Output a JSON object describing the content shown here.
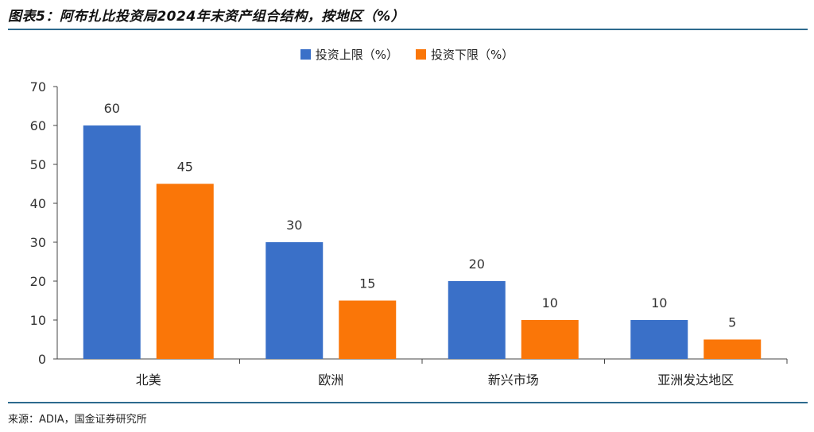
{
  "header": {
    "title": "图表5：阿布扎比投资局2024年末资产组合结构，按地区（%）"
  },
  "footer": {
    "source": "来源：ADIA，国金证券研究所"
  },
  "colors": {
    "upper": "#3a70c8",
    "lower": "#fa7608",
    "rule": "#2d6a8e"
  },
  "chart_data": {
    "type": "bar",
    "title": "阿布扎比投资局2024年末资产组合结构，按地区（%）",
    "categories": [
      "北美",
      "欧洲",
      "新兴市场",
      "亚洲发达地区"
    ],
    "series": [
      {
        "name": "投资上限（%）",
        "values": [
          60,
          30,
          20,
          10
        ]
      },
      {
        "name": "投资下限（%）",
        "values": [
          45,
          15,
          10,
          5
        ]
      }
    ],
    "xlabel": "",
    "ylabel": "",
    "ylim": [
      0,
      70
    ],
    "yticks": [
      0,
      10,
      20,
      30,
      40,
      50,
      60,
      70
    ],
    "grid": false,
    "legend_position": "top"
  }
}
